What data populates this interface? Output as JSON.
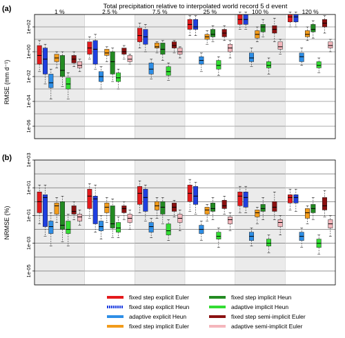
{
  "suptitle": "Total precipitation relative to interpolated world record 5 d event",
  "groups": [
    "1 %",
    "2.5 %",
    "7.5 %",
    "25 %",
    "100 %",
    "120 %"
  ],
  "series": [
    {
      "name": "fixed step explicit Euler",
      "color": "#e41a1c",
      "dashed": false
    },
    {
      "name": "fixed step explicit Heun",
      "color": "#1f3fe0",
      "dashed": true
    },
    {
      "name": "adaptive explicit Heun",
      "color": "#2e8ee6",
      "dashed": false
    },
    {
      "name": "fixed step implicit Euler",
      "color": "#f29b1a",
      "dashed": false
    },
    {
      "name": "fixed step implicit Heun",
      "color": "#238b22",
      "dashed": false
    },
    {
      "name": "adaptive implicit Heun",
      "color": "#33dd33",
      "dashed": false
    },
    {
      "name": "fixed step semi-implicit Euler",
      "color": "#8b1010",
      "dashed": false
    },
    {
      "name": "adaptive semi-implicit Euler",
      "color": "#f4b6bc",
      "dashed": false
    }
  ],
  "chart_data": [
    {
      "panel": "(a)",
      "type": "box",
      "ylabel": "RMSE (mm d⁻¹)",
      "log_scale": true,
      "yticks": [
        "1e-06",
        "1e-04",
        "1e-02",
        "1e+00",
        "1e+02"
      ],
      "ylim_exp": [
        -7,
        3
      ],
      "categories": [
        "1 %",
        "2.5 %",
        "7.5 %",
        "25 %",
        "100 %",
        "120 %"
      ],
      "boxes_log10": [
        [
          [
            -1.6,
            -1.0,
            -0.3,
            0.5,
            0.9
          ],
          [
            -2.6,
            -1.8,
            -0.6,
            0.3,
            0.6
          ],
          [
            -3.8,
            -2.9,
            -2.5,
            -1.8,
            -1.4
          ],
          [
            -1.3,
            -0.8,
            -0.5,
            -0.2,
            0.0
          ],
          [
            -2.8,
            -2.0,
            -1.5,
            -0.3,
            0.0
          ],
          [
            -3.8,
            -3.0,
            -2.6,
            -2.1,
            -1.7
          ],
          [
            -1.2,
            -0.9,
            -0.6,
            -0.3,
            0.0
          ],
          [
            -1.6,
            -1.3,
            -1.1,
            -0.8,
            -0.6
          ]
        ],
        [
          [
            -0.6,
            -0.2,
            0.3,
            0.8,
            1.2
          ],
          [
            -1.4,
            -1.0,
            0.2,
            0.9,
            1.4
          ],
          [
            -3.0,
            -2.4,
            -2.0,
            -1.6,
            -1.2
          ],
          [
            -0.8,
            -0.3,
            -0.1,
            0.2,
            0.4
          ],
          [
            -2.4,
            -1.8,
            -0.8,
            0.0,
            0.3
          ],
          [
            -3.0,
            -2.4,
            -2.1,
            -1.7,
            -1.4
          ],
          [
            -0.6,
            -0.2,
            0.0,
            0.3,
            0.5
          ],
          [
            -1.0,
            -0.8,
            -0.6,
            -0.3,
            -0.2
          ]
        ],
        [
          [
            0.3,
            0.8,
            1.3,
            1.9,
            2.3
          ],
          [
            0.0,
            0.6,
            1.2,
            1.8,
            2.2
          ],
          [
            -2.2,
            -1.8,
            -1.4,
            -0.9,
            -0.6
          ],
          [
            -0.1,
            0.3,
            0.4,
            0.7,
            0.8
          ],
          [
            -0.7,
            -0.2,
            0.2,
            0.7,
            0.9
          ],
          [
            -2.3,
            -1.9,
            -1.6,
            -1.2,
            -0.9
          ],
          [
            -0.1,
            0.3,
            0.5,
            0.8,
            0.9
          ],
          [
            -0.5,
            -0.2,
            0.0,
            0.3,
            0.4
          ]
        ],
        [
          [
            1.3,
            1.8,
            2.2,
            2.6,
            2.9
          ],
          [
            1.3,
            1.8,
            2.0,
            2.6,
            2.9
          ],
          [
            -1.6,
            -1.0,
            -0.7,
            -0.4,
            -0.1
          ],
          [
            0.6,
            1.0,
            1.2,
            1.4,
            1.7
          ],
          [
            0.8,
            1.2,
            1.4,
            1.8,
            2.1
          ],
          [
            -1.9,
            -1.4,
            -1.1,
            -0.7,
            -0.4
          ],
          [
            0.9,
            1.2,
            1.5,
            1.8,
            2.1
          ],
          [
            -0.5,
            0.0,
            0.3,
            0.6,
            0.9
          ]
        ],
        [
          [
            1.8,
            2.2,
            2.6,
            3.0,
            3.2
          ],
          [
            1.8,
            2.2,
            2.6,
            3.0,
            3.2
          ],
          [
            -1.2,
            -0.8,
            -0.5,
            -0.1,
            0.3
          ],
          [
            0.8,
            1.1,
            1.4,
            1.7,
            2.0
          ],
          [
            1.2,
            1.6,
            2.0,
            2.2,
            2.6
          ],
          [
            -1.8,
            -1.3,
            -1.1,
            -0.8,
            -0.5
          ],
          [
            0.8,
            1.5,
            1.8,
            2.1,
            2.7
          ],
          [
            -0.2,
            0.2,
            0.4,
            0.8,
            1.0
          ]
        ],
        [
          [
            2.0,
            2.4,
            2.8,
            3.0,
            3.2
          ],
          [
            2.0,
            2.4,
            2.8,
            3.0,
            3.2
          ],
          [
            -1.1,
            -0.8,
            -0.4,
            -0.1,
            0.3
          ],
          [
            0.9,
            1.2,
            1.4,
            1.7,
            2.0
          ],
          [
            1.1,
            1.6,
            1.8,
            2.2,
            2.5
          ],
          [
            -1.7,
            -1.3,
            -1.1,
            -0.8,
            -0.5
          ],
          [
            1.5,
            2.0,
            2.3,
            2.6,
            2.9
          ],
          [
            0.0,
            0.3,
            0.5,
            0.8,
            1.0
          ]
        ]
      ]
    },
    {
      "panel": "(b)",
      "type": "box",
      "ylabel": "NRMSE (%)",
      "log_scale": true,
      "yticks": [
        "1e-05",
        "1e-03",
        "1e-01",
        "1e+01",
        "1e+03"
      ],
      "ylim_exp": [
        -6,
        3
      ],
      "categories": [
        "1 %",
        "2.5 %",
        "7.5 %",
        "25 %",
        "100 %",
        "120 %"
      ],
      "boxes_log10": [
        [
          [
            -1.6,
            -0.8,
            0.0,
            0.7,
            1.2
          ],
          [
            -2.5,
            -1.8,
            0.3,
            0.5,
            1.2
          ],
          [
            -3.2,
            -2.3,
            -1.8,
            -1.4,
            -0.8
          ],
          [
            -1.5,
            -0.9,
            -0.3,
            -0.1,
            0.3
          ],
          [
            -2.9,
            -2.0,
            -1.7,
            0.0,
            0.4
          ],
          [
            -3.2,
            -2.3,
            -2.0,
            -1.4,
            -0.9
          ],
          [
            -1.3,
            -0.9,
            -0.7,
            -0.3,
            0.0
          ],
          [
            -1.7,
            -1.4,
            -1.1,
            -0.9,
            -0.6
          ]
        ],
        [
          [
            -1.2,
            -0.5,
            0.4,
            0.9,
            1.3
          ],
          [
            -2.2,
            -1.6,
            0.2,
            0.4,
            1.2
          ],
          [
            -2.7,
            -2.1,
            -1.8,
            -1.4,
            -1.0
          ],
          [
            -1.5,
            -0.8,
            -0.4,
            -0.1,
            0.3
          ],
          [
            -2.6,
            -1.9,
            -1.6,
            -0.3,
            0.2
          ],
          [
            -2.6,
            -2.2,
            -1.9,
            -1.5,
            -1.1
          ],
          [
            -1.3,
            -0.8,
            -0.5,
            -0.3,
            0.0
          ],
          [
            -2.0,
            -1.5,
            -1.2,
            -0.9,
            -0.6
          ]
        ],
        [
          [
            -0.8,
            -0.2,
            0.6,
            1.1,
            1.5
          ],
          [
            -1.4,
            -0.7,
            0.3,
            0.9,
            1.2
          ],
          [
            -2.6,
            -2.2,
            -1.8,
            -1.5,
            -1.2
          ],
          [
            -1.2,
            -0.6,
            -0.3,
            0.0,
            0.3
          ],
          [
            -1.6,
            -0.9,
            -0.4,
            0.0,
            0.3
          ],
          [
            -2.8,
            -2.4,
            -2.1,
            -1.6,
            -1.3
          ],
          [
            -1.1,
            -0.7,
            -0.4,
            -0.1,
            0.1
          ],
          [
            -2.1,
            -1.5,
            -1.2,
            -0.9,
            -0.6
          ]
        ],
        [
          [
            -0.7,
            0.0,
            0.6,
            1.2,
            1.6
          ],
          [
            -0.9,
            -0.2,
            0.4,
            1.1,
            1.4
          ],
          [
            -2.8,
            -2.3,
            -2.0,
            -1.7,
            -1.4
          ],
          [
            -1.4,
            -0.9,
            -0.6,
            -0.4,
            -0.2
          ],
          [
            -1.3,
            -0.7,
            -0.5,
            -0.1,
            0.3
          ],
          [
            -3.3,
            -2.7,
            -2.5,
            -2.2,
            -1.9
          ],
          [
            -0.9,
            -0.5,
            -0.3,
            0.1,
            0.4
          ],
          [
            -2.1,
            -1.6,
            -1.3,
            -1.1,
            -0.8
          ]
        ],
        [
          [
            -0.8,
            -0.3,
            0.4,
            0.7,
            1.1
          ],
          [
            -0.8,
            -0.4,
            0.3,
            0.7,
            1.1
          ],
          [
            -3.2,
            -2.8,
            -2.5,
            -2.2,
            -1.9
          ],
          [
            -1.6,
            -1.1,
            -0.8,
            -0.6,
            -0.4
          ],
          [
            -1.3,
            -0.7,
            -0.5,
            -0.2,
            0.3
          ],
          [
            -3.7,
            -3.2,
            -3.0,
            -2.7,
            -2.4
          ],
          [
            -1.3,
            -0.7,
            -0.4,
            0.0,
            0.7
          ],
          [
            -2.4,
            -1.8,
            -1.5,
            -1.3,
            -1.0
          ]
        ],
        [
          [
            -0.6,
            -0.1,
            0.3,
            0.5,
            0.9
          ],
          [
            -0.7,
            -0.1,
            0.3,
            0.5,
            0.9
          ],
          [
            -3.3,
            -2.8,
            -2.5,
            -2.2,
            -1.9
          ],
          [
            -1.6,
            -1.2,
            -0.8,
            -0.5,
            -0.3
          ],
          [
            -1.3,
            -0.8,
            -0.5,
            -0.2,
            0.3
          ],
          [
            -3.8,
            -3.3,
            -3.0,
            -2.7,
            -2.4
          ],
          [
            -1.1,
            -0.6,
            -0.3,
            0.3,
            0.8
          ],
          [
            -2.5,
            -1.9,
            -1.6,
            -1.3,
            -1.0
          ]
        ]
      ]
    }
  ]
}
